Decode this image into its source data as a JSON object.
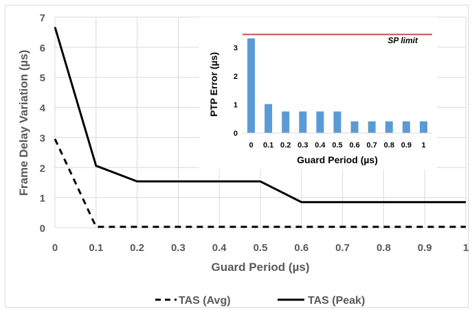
{
  "chart_data": [
    {
      "type": "line",
      "title": "",
      "xlabel": "Guard Period (µs)",
      "ylabel": "Frame Delay Variation (µs)",
      "xlim": [
        0,
        1
      ],
      "ylim": [
        0,
        7
      ],
      "x_ticks": [
        "0",
        "0.1",
        "0.2",
        "0.3",
        "0.4",
        "0.5",
        "0.6",
        "0.7",
        "0.8",
        "0.9",
        "1"
      ],
      "y_ticks": [
        "0",
        "1",
        "2",
        "3",
        "4",
        "5",
        "6",
        "7"
      ],
      "grid": true,
      "legend_position": "bottom",
      "series": [
        {
          "name": "TAS (Avg)",
          "style": "dashed",
          "color": "#000000",
          "x": [
            0,
            0.1,
            1
          ],
          "y": [
            2.95,
            0.03,
            0.03
          ]
        },
        {
          "name": "TAS (Peak)",
          "style": "solid",
          "color": "#000000",
          "x": [
            0,
            0.1,
            0.2,
            0.5,
            0.6,
            1
          ],
          "y": [
            6.67,
            2.06,
            1.54,
            1.54,
            0.85,
            0.85
          ]
        }
      ]
    },
    {
      "type": "bar",
      "title": "",
      "xlabel": "Guard Period (µs)",
      "ylabel": "PTP Error (µs)",
      "ylim": [
        0,
        3.5
      ],
      "categories": [
        "0",
        "0.1",
        "0.2",
        "0.3",
        "0.4",
        "0.5",
        "0.6",
        "0.7",
        "0.8",
        "0.9",
        "1"
      ],
      "y_ticks": [
        "0",
        "1",
        "2",
        "3"
      ],
      "values": [
        3.33,
        1.02,
        0.76,
        0.76,
        0.76,
        0.76,
        0.41,
        0.41,
        0.41,
        0.41,
        0.41
      ],
      "bar_color": "#5b9bd5",
      "reference_line": {
        "label": "SP limit",
        "value": 3.47,
        "color": "#c0504d"
      }
    }
  ]
}
